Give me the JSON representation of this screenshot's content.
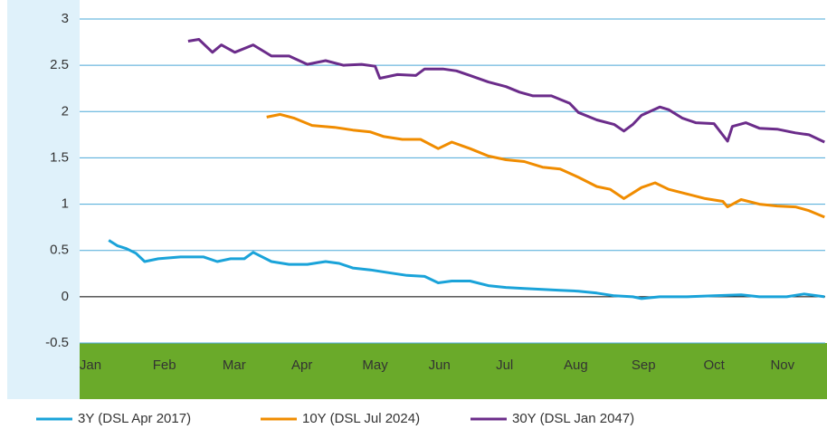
{
  "chart_data": {
    "type": "line",
    "xlim": [
      0,
      11
    ],
    "xticks": [
      {
        "value": 0.16,
        "label": "Jan"
      },
      {
        "value": 1.25,
        "label": "Feb"
      },
      {
        "value": 2.28,
        "label": "Mar"
      },
      {
        "value": 3.28,
        "label": "Apr"
      },
      {
        "value": 4.36,
        "label": "May"
      },
      {
        "value": 5.31,
        "label": "Jun"
      },
      {
        "value": 6.27,
        "label": "Jul"
      },
      {
        "value": 7.32,
        "label": "Aug"
      },
      {
        "value": 8.32,
        "label": "Sep"
      },
      {
        "value": 9.36,
        "label": "Oct"
      },
      {
        "value": 10.37,
        "label": "Nov"
      }
    ],
    "ylim": [
      -0.5,
      3
    ],
    "yticks": [
      -0.5,
      0,
      0.5,
      1,
      1.5,
      2,
      2.5,
      3
    ],
    "grid": true,
    "legend": "bottom",
    "series": [
      {
        "name": "3Y (DSL Apr 2017)",
        "color": "#1aa3d9",
        "x": [
          0.43,
          0.56,
          0.69,
          0.83,
          0.96,
          1.16,
          1.49,
          1.83,
          2.03,
          2.23,
          2.43,
          2.56,
          2.83,
          3.09,
          3.36,
          3.63,
          3.83,
          4.03,
          4.29,
          4.56,
          4.83,
          5.09,
          5.29,
          5.49,
          5.76,
          6.03,
          6.29,
          6.56,
          6.83,
          7.09,
          7.36,
          7.63,
          7.89,
          8.16,
          8.29,
          8.56,
          8.96,
          9.36,
          9.76,
          10.03,
          10.43,
          10.69,
          10.99
        ],
        "values": [
          0.61,
          0.55,
          0.52,
          0.47,
          0.38,
          0.41,
          0.43,
          0.43,
          0.38,
          0.41,
          0.41,
          0.48,
          0.38,
          0.35,
          0.35,
          0.38,
          0.36,
          0.31,
          0.29,
          0.26,
          0.23,
          0.22,
          0.15,
          0.17,
          0.17,
          0.12,
          0.1,
          0.09,
          0.08,
          0.07,
          0.06,
          0.04,
          0.01,
          0,
          -0.02,
          0,
          0,
          0.01,
          0.02,
          0,
          0,
          0.03,
          0
        ]
      },
      {
        "name": "10Y (DSL Jul 2024)",
        "color": "#f08c00",
        "x": [
          2.76,
          2.96,
          3.16,
          3.43,
          3.76,
          4.03,
          4.29,
          4.49,
          4.76,
          5.03,
          5.29,
          5.49,
          5.76,
          6.03,
          6.29,
          6.56,
          6.83,
          7.09,
          7.36,
          7.63,
          7.83,
          8.03,
          8.16,
          8.29,
          8.49,
          8.69,
          8.96,
          9.23,
          9.49,
          9.56,
          9.76,
          10.03,
          10.29,
          10.56,
          10.76,
          10.99
        ],
        "values": [
          1.94,
          1.97,
          1.93,
          1.85,
          1.83,
          1.8,
          1.78,
          1.73,
          1.7,
          1.7,
          1.6,
          1.67,
          1.6,
          1.52,
          1.48,
          1.46,
          1.4,
          1.38,
          1.29,
          1.19,
          1.16,
          1.06,
          1.12,
          1.18,
          1.23,
          1.16,
          1.11,
          1.06,
          1.03,
          0.97,
          1.05,
          1,
          0.98,
          0.97,
          0.93,
          0.86
        ]
      },
      {
        "name": "30Y (DSL Jan 2047)",
        "color": "#6b2c8a",
        "x": [
          1.6,
          1.76,
          1.96,
          2.09,
          2.29,
          2.56,
          2.83,
          3.09,
          3.36,
          3.63,
          3.89,
          4.16,
          4.36,
          4.43,
          4.69,
          4.96,
          5.09,
          5.36,
          5.56,
          5.76,
          6.03,
          6.29,
          6.49,
          6.69,
          6.96,
          7.23,
          7.36,
          7.63,
          7.89,
          8.03,
          8.16,
          8.29,
          8.56,
          8.69,
          8.89,
          9.09,
          9.36,
          9.56,
          9.63,
          9.83,
          10.03,
          10.29,
          10.56,
          10.76,
          10.99
        ],
        "values": [
          2.76,
          2.78,
          2.64,
          2.72,
          2.64,
          2.72,
          2.6,
          2.6,
          2.51,
          2.55,
          2.5,
          2.51,
          2.49,
          2.36,
          2.4,
          2.39,
          2.46,
          2.46,
          2.44,
          2.39,
          2.32,
          2.27,
          2.21,
          2.17,
          2.17,
          2.09,
          1.99,
          1.91,
          1.86,
          1.79,
          1.86,
          1.96,
          2.05,
          2.02,
          1.93,
          1.88,
          1.87,
          1.68,
          1.84,
          1.88,
          1.82,
          1.81,
          1.77,
          1.75,
          1.67
        ]
      }
    ]
  }
}
